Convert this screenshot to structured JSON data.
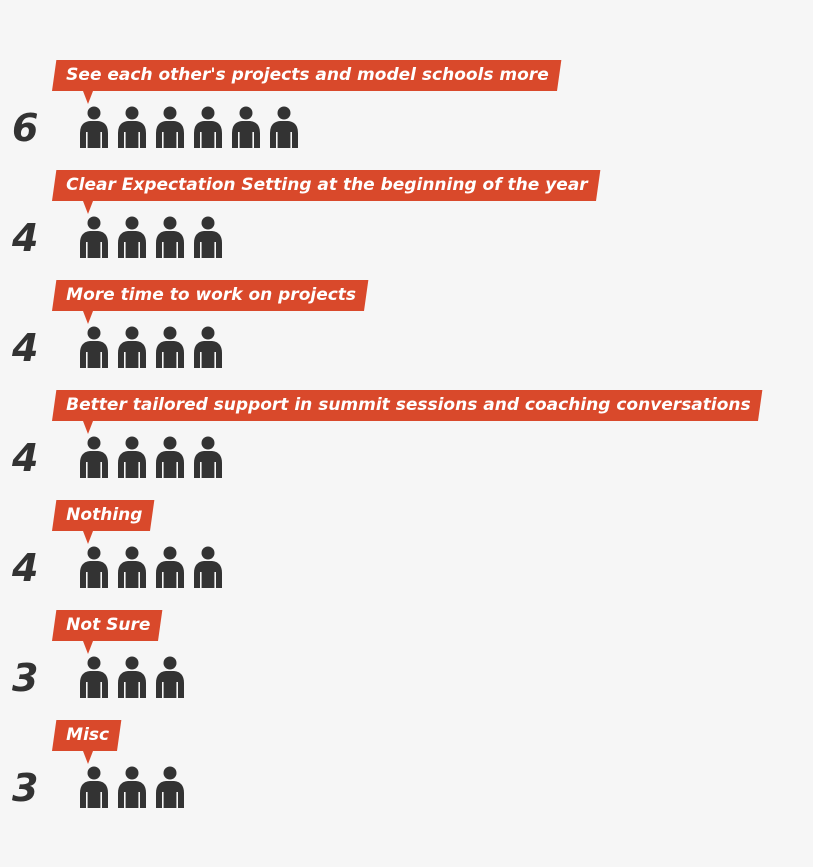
{
  "colors": {
    "tag_fill": "#d9492b",
    "icon_fill": "#333333",
    "count_text": "#333333",
    "background": "#f6f6f6"
  },
  "chart_data": {
    "type": "pictograph",
    "icon": "person-icon",
    "categories": [
      "See each other's projects and model schools more",
      "Clear Expectation Setting at the beginning of the year",
      "More time to work on projects",
      "Better tailored support in summit sessions and coaching conversations",
      "Nothing",
      "Not Sure",
      "Misc"
    ],
    "values": [
      6,
      4,
      4,
      4,
      4,
      3,
      3
    ]
  }
}
